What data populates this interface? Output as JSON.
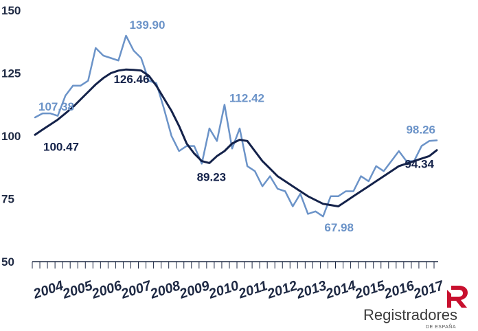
{
  "chart_data": {
    "type": "line",
    "title": "",
    "xlabel": "",
    "ylabel": "",
    "ylim": [
      50,
      150
    ],
    "y_ticks": [
      "150",
      "125",
      "100",
      "75",
      "50"
    ],
    "x_tick_labels": [
      "2004",
      "2005",
      "2006",
      "2007",
      "2008",
      "2009",
      "2010",
      "2011",
      "2012",
      "2013",
      "2014",
      "2015",
      "2016",
      "2017"
    ],
    "grid": false,
    "legend": "none",
    "series": [
      {
        "color": "#6b93c8",
        "style": "quarterly",
        "values": [
          107.38,
          109,
          109,
          108,
          116,
          120,
          120,
          122,
          135,
          132,
          131,
          130,
          139.9,
          134,
          131,
          122,
          121,
          111,
          100,
          94,
          96,
          96,
          89,
          103,
          98,
          112.42,
          95,
          103,
          88,
          86,
          80,
          84,
          79,
          78,
          72,
          77,
          69,
          70,
          67.98,
          76,
          76,
          78,
          78,
          84,
          82,
          88,
          86,
          90,
          94,
          90,
          90,
          96,
          98,
          98.26
        ],
        "annotations": [
          {
            "index": 0,
            "text": "107.38"
          },
          {
            "index": 12,
            "text": "139.90"
          },
          {
            "index": 25,
            "text": "112.42"
          },
          {
            "index": 38,
            "text": "67.98"
          },
          {
            "index": 53,
            "text": "98.26"
          }
        ]
      },
      {
        "color": "#14224a",
        "style": "trend",
        "values": [
          100.47,
          102.5,
          104.5,
          106.5,
          109,
          111.5,
          114.5,
          117.5,
          120.5,
          123,
          125,
          126,
          126.46,
          126.3,
          126,
          124,
          120,
          115,
          110,
          104,
          97,
          93,
          90,
          89.23,
          92,
          94,
          97,
          98.5,
          98,
          94,
          90,
          87,
          84,
          82,
          80,
          78,
          76,
          74.5,
          73,
          72.5,
          72,
          74,
          76,
          78,
          80,
          82,
          84,
          86,
          88,
          89,
          90,
          91,
          92,
          94.34
        ],
        "annotations": [
          {
            "index": 0,
            "text": "100.47"
          },
          {
            "index": 12,
            "text": "126.46"
          },
          {
            "index": 23,
            "text": "89.23"
          },
          {
            "index": 53,
            "text": "94.34"
          }
        ]
      }
    ]
  },
  "logo": {
    "text": "Registradores",
    "subtext": "DE ESPAÑA",
    "color": "#c8102e"
  }
}
